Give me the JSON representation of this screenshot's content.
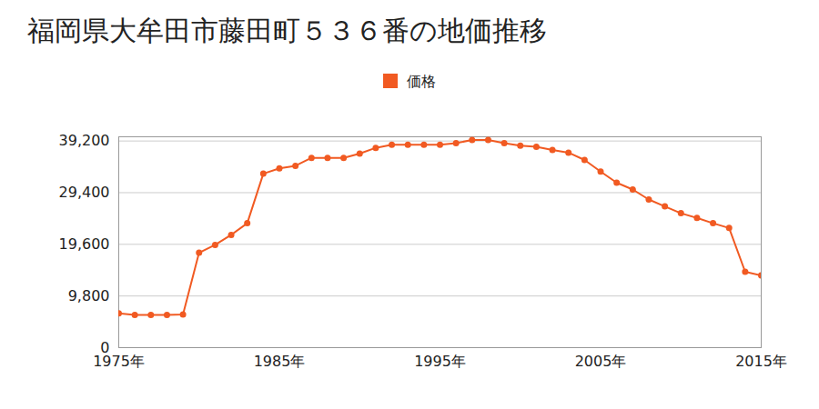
{
  "chart_data": {
    "type": "line",
    "title": "福岡県大牟田市藤田町５３６番の地価推移",
    "series": [
      {
        "name": "価格",
        "color": "#f15a22",
        "marker": "circle",
        "values": [
          6500,
          6200,
          6200,
          6200,
          6300,
          18000,
          19500,
          21400,
          23600,
          33000,
          34000,
          34500,
          36000,
          36000,
          36000,
          36800,
          37900,
          38500,
          38500,
          38500,
          38500,
          38800,
          39400,
          39400,
          38800,
          38300,
          38100,
          37500,
          37000,
          35600,
          33400,
          31300,
          30000,
          28100,
          26800,
          25500,
          24600,
          23600,
          22700,
          14400,
          13700
        ]
      }
    ],
    "x": [
      1975,
      1976,
      1977,
      1978,
      1979,
      1980,
      1981,
      1982,
      1983,
      1984,
      1985,
      1986,
      1987,
      1988,
      1989,
      1990,
      1991,
      1992,
      1993,
      1994,
      1995,
      1996,
      1997,
      1998,
      1999,
      2000,
      2001,
      2002,
      2003,
      2004,
      2005,
      2006,
      2007,
      2008,
      2009,
      2010,
      2011,
      2012,
      2013,
      2014,
      2015
    ],
    "xlim": [
      1975,
      2015
    ],
    "xticks": [
      {
        "value": 1975,
        "label": "1975年"
      },
      {
        "value": 1985,
        "label": "1985年"
      },
      {
        "value": 1995,
        "label": "1995年"
      },
      {
        "value": 2005,
        "label": "2005年"
      },
      {
        "value": 2015,
        "label": "2015年"
      }
    ],
    "ylim": [
      0,
      40000
    ],
    "yticks": [
      0,
      {
        "value": 9800,
        "label": "9,800"
      },
      {
        "value": 19600,
        "label": "19,600"
      },
      {
        "value": 29400,
        "label": "29,400"
      },
      {
        "value": 39200,
        "label": "39,200"
      }
    ],
    "grid": "y",
    "legend": "top"
  }
}
